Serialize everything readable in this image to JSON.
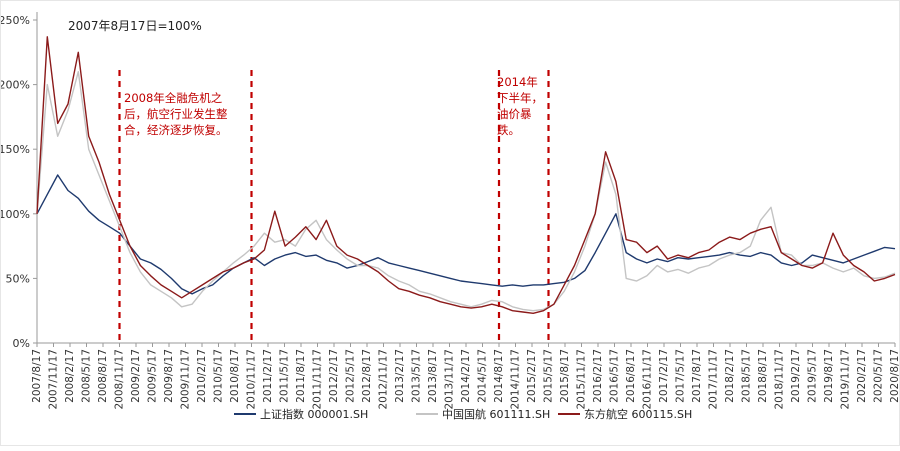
{
  "chart_data": {
    "type": "line",
    "note": "2007年8月17日=100%",
    "ylim": [
      0,
      250
    ],
    "y_ticks": [
      0,
      50,
      100,
      150,
      200,
      250
    ],
    "y_tick_labels": [
      "0%",
      "50%",
      "100%",
      "150%",
      "200%",
      "250%"
    ],
    "x_tick_labels": [
      "2007/8/17",
      "2007/11/17",
      "2008/2/17",
      "2008/5/17",
      "2008/8/17",
      "2008/11/17",
      "2009/2/17",
      "2009/5/17",
      "2009/8/17",
      "2009/11/17",
      "2010/2/17",
      "2010/5/17",
      "2010/8/17",
      "2010/11/17",
      "2011/2/17",
      "2011/5/17",
      "2011/8/17",
      "2011/11/17",
      "2012/2/17",
      "2012/5/17",
      "2012/8/17",
      "2012/11/17",
      "2013/2/17",
      "2013/5/17",
      "2013/8/17",
      "2013/11/17",
      "2014/2/17",
      "2014/5/17",
      "2014/8/17",
      "2014/11/17",
      "2015/2/17",
      "2015/5/17",
      "2015/8/17",
      "2015/11/17",
      "2016/2/17",
      "2016/5/17",
      "2016/8/17",
      "2016/11/17",
      "2017/2/17",
      "2017/5/17",
      "2017/8/17",
      "2017/11/17",
      "2018/2/17",
      "2018/5/17",
      "2018/8/17",
      "2018/11/17",
      "2019/2/17",
      "2019/5/17",
      "2019/8/17",
      "2019/11/17",
      "2020/2/17",
      "2020/5/17",
      "2020/8/17"
    ],
    "series": [
      {
        "name": "上证指数 000001.SH",
        "color": "#1f3a6e",
        "points": [
          [
            0,
            100
          ],
          [
            1,
            115
          ],
          [
            2,
            130
          ],
          [
            3,
            118
          ],
          [
            4,
            112
          ],
          [
            5,
            102
          ],
          [
            6,
            95
          ],
          [
            7,
            90
          ],
          [
            8,
            85
          ],
          [
            9,
            75
          ],
          [
            10,
            65
          ],
          [
            11,
            62
          ],
          [
            12,
            57
          ],
          [
            13,
            50
          ],
          [
            14,
            42
          ],
          [
            15,
            38
          ],
          [
            16,
            42
          ],
          [
            17,
            45
          ],
          [
            18,
            52
          ],
          [
            19,
            58
          ],
          [
            20,
            62
          ],
          [
            21,
            66
          ],
          [
            22,
            60
          ],
          [
            23,
            65
          ],
          [
            24,
            68
          ],
          [
            25,
            70
          ],
          [
            26,
            67
          ],
          [
            27,
            68
          ],
          [
            28,
            64
          ],
          [
            29,
            62
          ],
          [
            30,
            58
          ],
          [
            31,
            60
          ],
          [
            32,
            63
          ],
          [
            33,
            66
          ],
          [
            34,
            62
          ],
          [
            35,
            60
          ],
          [
            36,
            58
          ],
          [
            37,
            56
          ],
          [
            38,
            54
          ],
          [
            39,
            52
          ],
          [
            40,
            50
          ],
          [
            41,
            48
          ],
          [
            42,
            47
          ],
          [
            43,
            46
          ],
          [
            44,
            45
          ],
          [
            45,
            44
          ],
          [
            46,
            45
          ],
          [
            47,
            44
          ],
          [
            48,
            45
          ],
          [
            49,
            45
          ],
          [
            50,
            46
          ],
          [
            51,
            47
          ],
          [
            52,
            50
          ],
          [
            53,
            56
          ],
          [
            54,
            70
          ],
          [
            55,
            85
          ],
          [
            56,
            100
          ],
          [
            57,
            70
          ],
          [
            58,
            65
          ],
          [
            59,
            62
          ],
          [
            60,
            65
          ],
          [
            61,
            63
          ],
          [
            62,
            66
          ],
          [
            63,
            65
          ],
          [
            64,
            66
          ],
          [
            65,
            67
          ],
          [
            66,
            68
          ],
          [
            67,
            70
          ],
          [
            68,
            68
          ],
          [
            69,
            67
          ],
          [
            70,
            70
          ],
          [
            71,
            68
          ],
          [
            72,
            62
          ],
          [
            73,
            60
          ],
          [
            74,
            62
          ],
          [
            75,
            68
          ],
          [
            76,
            66
          ],
          [
            77,
            64
          ],
          [
            78,
            62
          ],
          [
            79,
            65
          ],
          [
            80,
            68
          ],
          [
            81,
            71
          ],
          [
            82,
            74
          ],
          [
            83,
            73
          ]
        ]
      },
      {
        "name": "中国国航 601111.SH",
        "color": "#c4c4c4",
        "points": [
          [
            0,
            100
          ],
          [
            1,
            200
          ],
          [
            2,
            160
          ],
          [
            3,
            180
          ],
          [
            4,
            210
          ],
          [
            5,
            150
          ],
          [
            6,
            130
          ],
          [
            7,
            110
          ],
          [
            8,
            90
          ],
          [
            9,
            70
          ],
          [
            10,
            55
          ],
          [
            11,
            45
          ],
          [
            12,
            40
          ],
          [
            13,
            35
          ],
          [
            14,
            28
          ],
          [
            15,
            30
          ],
          [
            16,
            40
          ],
          [
            17,
            48
          ],
          [
            18,
            55
          ],
          [
            19,
            62
          ],
          [
            20,
            68
          ],
          [
            21,
            75
          ],
          [
            22,
            85
          ],
          [
            23,
            78
          ],
          [
            24,
            80
          ],
          [
            25,
            75
          ],
          [
            26,
            88
          ],
          [
            27,
            95
          ],
          [
            28,
            80
          ],
          [
            29,
            72
          ],
          [
            30,
            65
          ],
          [
            31,
            60
          ],
          [
            32,
            60
          ],
          [
            33,
            58
          ],
          [
            34,
            52
          ],
          [
            35,
            48
          ],
          [
            36,
            45
          ],
          [
            37,
            40
          ],
          [
            38,
            38
          ],
          [
            39,
            35
          ],
          [
            40,
            32
          ],
          [
            41,
            30
          ],
          [
            42,
            28
          ],
          [
            43,
            30
          ],
          [
            44,
            33
          ],
          [
            45,
            32
          ],
          [
            46,
            28
          ],
          [
            47,
            26
          ],
          [
            48,
            25
          ],
          [
            49,
            26
          ],
          [
            50,
            30
          ],
          [
            51,
            40
          ],
          [
            52,
            55
          ],
          [
            53,
            75
          ],
          [
            54,
            100
          ],
          [
            55,
            140
          ],
          [
            56,
            115
          ],
          [
            57,
            50
          ],
          [
            58,
            48
          ],
          [
            59,
            52
          ],
          [
            60,
            60
          ],
          [
            61,
            55
          ],
          [
            62,
            57
          ],
          [
            63,
            54
          ],
          [
            64,
            58
          ],
          [
            65,
            60
          ],
          [
            66,
            65
          ],
          [
            67,
            68
          ],
          [
            68,
            70
          ],
          [
            69,
            75
          ],
          [
            70,
            95
          ],
          [
            71,
            105
          ],
          [
            72,
            70
          ],
          [
            73,
            68
          ],
          [
            74,
            60
          ],
          [
            75,
            60
          ],
          [
            76,
            62
          ],
          [
            77,
            58
          ],
          [
            78,
            55
          ],
          [
            79,
            58
          ],
          [
            80,
            52
          ],
          [
            81,
            50
          ],
          [
            82,
            51
          ],
          [
            83,
            54
          ]
        ]
      },
      {
        "name": "东方航空 600115.SH",
        "color": "#8b1a1a",
        "points": [
          [
            0,
            100
          ],
          [
            1,
            237
          ],
          [
            2,
            170
          ],
          [
            3,
            185
          ],
          [
            4,
            225
          ],
          [
            5,
            160
          ],
          [
            6,
            140
          ],
          [
            7,
            115
          ],
          [
            8,
            95
          ],
          [
            9,
            75
          ],
          [
            10,
            60
          ],
          [
            11,
            52
          ],
          [
            12,
            45
          ],
          [
            13,
            40
          ],
          [
            14,
            35
          ],
          [
            15,
            40
          ],
          [
            16,
            45
          ],
          [
            17,
            50
          ],
          [
            18,
            55
          ],
          [
            19,
            58
          ],
          [
            20,
            62
          ],
          [
            21,
            65
          ],
          [
            22,
            72
          ],
          [
            23,
            102
          ],
          [
            24,
            75
          ],
          [
            25,
            82
          ],
          [
            26,
            90
          ],
          [
            27,
            80
          ],
          [
            28,
            95
          ],
          [
            29,
            75
          ],
          [
            30,
            68
          ],
          [
            31,
            65
          ],
          [
            32,
            60
          ],
          [
            33,
            55
          ],
          [
            34,
            48
          ],
          [
            35,
            42
          ],
          [
            36,
            40
          ],
          [
            37,
            37
          ],
          [
            38,
            35
          ],
          [
            39,
            32
          ],
          [
            40,
            30
          ],
          [
            41,
            28
          ],
          [
            42,
            27
          ],
          [
            43,
            28
          ],
          [
            44,
            30
          ],
          [
            45,
            28
          ],
          [
            46,
            25
          ],
          [
            47,
            24
          ],
          [
            48,
            23
          ],
          [
            49,
            25
          ],
          [
            50,
            30
          ],
          [
            51,
            45
          ],
          [
            52,
            60
          ],
          [
            53,
            80
          ],
          [
            54,
            100
          ],
          [
            55,
            148
          ],
          [
            56,
            125
          ],
          [
            57,
            80
          ],
          [
            58,
            78
          ],
          [
            59,
            70
          ],
          [
            60,
            75
          ],
          [
            61,
            65
          ],
          [
            62,
            68
          ],
          [
            63,
            66
          ],
          [
            64,
            70
          ],
          [
            65,
            72
          ],
          [
            66,
            78
          ],
          [
            67,
            82
          ],
          [
            68,
            80
          ],
          [
            69,
            85
          ],
          [
            70,
            88
          ],
          [
            71,
            90
          ],
          [
            72,
            70
          ],
          [
            73,
            65
          ],
          [
            74,
            60
          ],
          [
            75,
            58
          ],
          [
            76,
            62
          ],
          [
            77,
            85
          ],
          [
            78,
            68
          ],
          [
            79,
            60
          ],
          [
            80,
            55
          ],
          [
            81,
            48
          ],
          [
            82,
            50
          ],
          [
            83,
            53
          ]
        ]
      }
    ],
    "annotations": [
      {
        "text_lines": [
          "2008年全融危机之",
          "后，航空行业发生整",
          "合，经济逐步恢复。"
        ],
        "color": "#c00000"
      },
      {
        "text_lines": [
          "2014年",
          "下半年，",
          "油价暴",
          "跌。"
        ],
        "color": "#c00000"
      }
    ],
    "vlines": [
      {
        "x_label": "2008/11/17",
        "style": "dashed",
        "color": "#c00000"
      },
      {
        "x_label": "2010/11/17",
        "style": "dashed",
        "color": "#c00000"
      },
      {
        "x_label": "2014/8/17",
        "style": "dashed",
        "color": "#c00000"
      },
      {
        "x_label": "2015/5/17",
        "style": "dashed",
        "color": "#c00000"
      }
    ],
    "legend_position": "bottom",
    "grid": false
  }
}
